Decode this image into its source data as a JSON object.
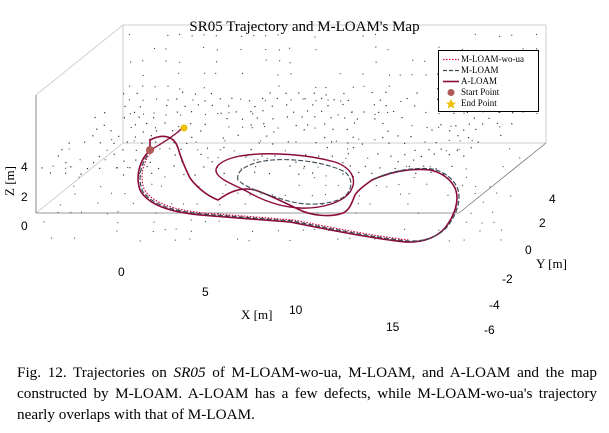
{
  "figure": {
    "title": "SR05 Trajectory and M-LOAM's Map",
    "axes": {
      "x_label": "X [m]",
      "y_label": "Y [m]",
      "z_label": "Z [m]",
      "x_ticks": [
        "0",
        "5",
        "10",
        "15"
      ],
      "y_ticks": [
        "4",
        "2",
        "0",
        "-2",
        "-4",
        "-6"
      ],
      "z_ticks": [
        "4",
        "2",
        "0"
      ]
    },
    "legend": [
      {
        "label": "M-LOAM-wo-ua",
        "color": "#cc0033",
        "style": "dotted"
      },
      {
        "label": "M-LOAM",
        "color": "#3a4a55",
        "style": "dashed"
      },
      {
        "label": "A-LOAM",
        "color": "#8b0a3a",
        "style": "solid"
      },
      {
        "label": "Start Point",
        "color": "#b05a55",
        "style": "marker-circle"
      },
      {
        "label": "End Point",
        "color": "#f0c000",
        "style": "marker-star"
      }
    ]
  },
  "caption": {
    "prefix": "Fig. 12.  Trajectories on ",
    "dataset": "SR05",
    "suffix": " of M-LOAM-wo-ua, M-LOAM, and A-LOAM and the map constructed by M-LOAM. A-LOAM has a few defects, while M-LOAM-wo-ua's trajectory nearly overlaps with that of M-LOAM."
  }
}
